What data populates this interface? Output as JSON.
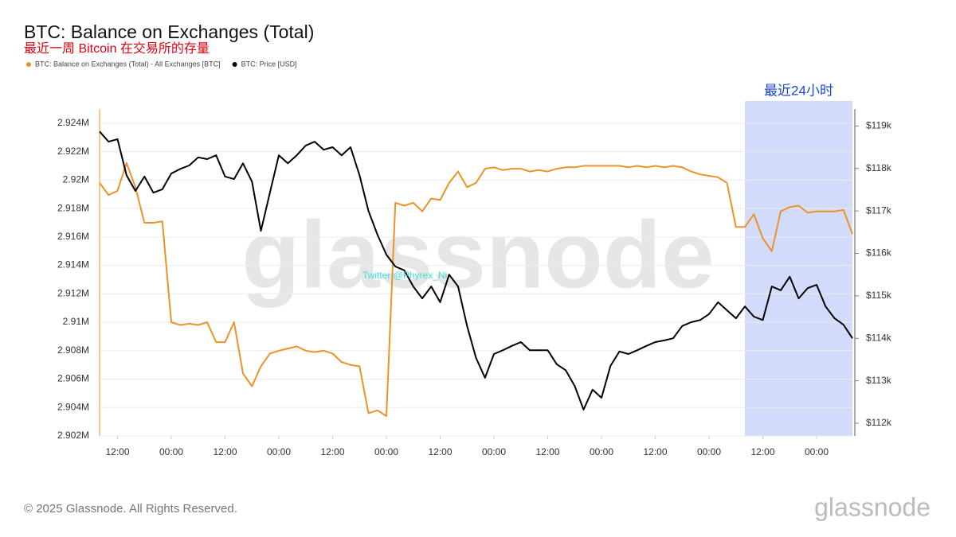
{
  "chart_data": {
    "type": "line",
    "title": "BTC: Balance on Exchanges (Total)",
    "subtitle": "最近一周 Bitcoin 在交易所的存量",
    "watermark": "glassnode",
    "annotation": "Twitter @Phyrex_Ni",
    "highlight": {
      "label": "最近24小时",
      "x": [
        144,
        168
      ]
    },
    "footer": "© 2025 Glassnode. All Rights Reserved.",
    "logo": "glassnode",
    "grid": true,
    "legend": "top-left",
    "x": [
      0,
      2,
      4,
      6,
      8,
      10,
      12,
      14,
      16,
      18,
      20,
      22,
      24,
      26,
      28,
      30,
      32,
      34,
      36,
      38,
      40,
      42,
      44,
      46,
      48,
      50,
      52,
      54,
      56,
      58,
      60,
      62,
      64,
      66,
      68,
      70,
      72,
      74,
      76,
      78,
      80,
      82,
      84,
      86,
      88,
      90,
      92,
      94,
      96,
      98,
      100,
      102,
      104,
      106,
      108,
      110,
      112,
      114,
      116,
      118,
      120,
      122,
      124,
      126,
      128,
      130,
      132,
      134,
      136,
      138,
      140,
      142,
      144,
      146,
      148,
      150,
      152,
      154,
      156,
      158,
      160,
      162,
      164,
      166,
      168
    ],
    "xlim": [
      0,
      168
    ],
    "xticks": [
      {
        "value": 4,
        "label": "12:00"
      },
      {
        "value": 16,
        "label": "00:00"
      },
      {
        "value": 28,
        "label": "12:00"
      },
      {
        "value": 40,
        "label": "00:00"
      },
      {
        "value": 52,
        "label": "12:00"
      },
      {
        "value": 64,
        "label": "00:00"
      },
      {
        "value": 76,
        "label": "12:00"
      },
      {
        "value": 88,
        "label": "00:00"
      },
      {
        "value": 100,
        "label": "12:00"
      },
      {
        "value": 112,
        "label": "00:00"
      },
      {
        "value": 124,
        "label": "12:00"
      },
      {
        "value": 136,
        "label": "00:00"
      },
      {
        "value": 148,
        "label": "12:00"
      },
      {
        "value": 160,
        "label": "00:00"
      }
    ],
    "ylim": [
      2902000,
      2925000
    ],
    "yticks": [
      {
        "value": 2902000,
        "label": "2.902M"
      },
      {
        "value": 2904000,
        "label": "2.904M"
      },
      {
        "value": 2906000,
        "label": "2.906M"
      },
      {
        "value": 2908000,
        "label": "2.908M"
      },
      {
        "value": 2910000,
        "label": "2.91M"
      },
      {
        "value": 2912000,
        "label": "2.912M"
      },
      {
        "value": 2914000,
        "label": "2.914M"
      },
      {
        "value": 2916000,
        "label": "2.916M"
      },
      {
        "value": 2918000,
        "label": "2.918M"
      },
      {
        "value": 2920000,
        "label": "2.92M"
      },
      {
        "value": 2922000,
        "label": "2.922M"
      },
      {
        "value": 2924000,
        "label": "2.924M"
      }
    ],
    "y2lim": [
      111700,
      119400
    ],
    "y2ticks": [
      {
        "value": 112000,
        "label": "$112k"
      },
      {
        "value": 113000,
        "label": "$113k"
      },
      {
        "value": 114000,
        "label": "$114k"
      },
      {
        "value": 115000,
        "label": "$115k"
      },
      {
        "value": 116000,
        "label": "$116k"
      },
      {
        "value": 117000,
        "label": "$117k"
      },
      {
        "value": 118000,
        "label": "$118k"
      },
      {
        "value": 119000,
        "label": "$119k"
      }
    ],
    "series": [
      {
        "name": "BTC: Balance on Exchanges (Total) - All Exchanges [BTC]",
        "color": "#ed9227",
        "axis": "y",
        "values": [
          2919800,
          2918950,
          2919250,
          2921200,
          2919500,
          2917000,
          2917000,
          2917100,
          2910000,
          2909800,
          2909900,
          2909800,
          2910000,
          2908600,
          2908600,
          2910000,
          2906400,
          2905500,
          2906900,
          2907800,
          2908000,
          2908150,
          2908300,
          2908000,
          2907900,
          2908000,
          2907800,
          2907200,
          2907000,
          2906900,
          2903600,
          2903800,
          2903400,
          2918400,
          2918200,
          2918400,
          2917800,
          2918700,
          2918600,
          2919800,
          2920600,
          2919500,
          2919800,
          2920800,
          2920900,
          2920700,
          2920800,
          2920800,
          2920600,
          2920700,
          2920600,
          2920800,
          2920900,
          2920900,
          2921000,
          2921000,
          2921000,
          2921000,
          2921000,
          2920900,
          2921000,
          2920900,
          2921000,
          2920900,
          2921000,
          2920900,
          2920600,
          2920400,
          2920300,
          2920200,
          2919800,
          2916700,
          2916700,
          2917600,
          2915900,
          2915000,
          2917800,
          2918100,
          2918200,
          2917700,
          2917800,
          2917800,
          2917800,
          2917900,
          2916200
        ]
      },
      {
        "name": "BTC: Price [USD]",
        "color": "#000000",
        "axis": "y2",
        "values": [
          118870,
          118630,
          118690,
          117840,
          117470,
          117810,
          117430,
          117510,
          117880,
          117990,
          118070,
          118260,
          118220,
          118310,
          117810,
          117750,
          118120,
          117690,
          116530,
          117430,
          118310,
          118120,
          118310,
          118540,
          118630,
          118440,
          118500,
          118310,
          118500,
          117840,
          117000,
          116440,
          115970,
          115690,
          115600,
          115220,
          114940,
          115220,
          114850,
          115500,
          115220,
          114290,
          113540,
          113070,
          113630,
          113720,
          113820,
          113910,
          113720,
          113720,
          113720,
          113390,
          113250,
          112880,
          112320,
          112790,
          112600,
          113350,
          113690,
          113630,
          113720,
          113820,
          113910,
          113950,
          114000,
          114290,
          114380,
          114430,
          114570,
          114850,
          114660,
          114470,
          114750,
          114510,
          114430,
          115220,
          115130,
          115450,
          114940,
          115180,
          115260,
          114750,
          114470,
          114320,
          114000
        ]
      }
    ]
  }
}
